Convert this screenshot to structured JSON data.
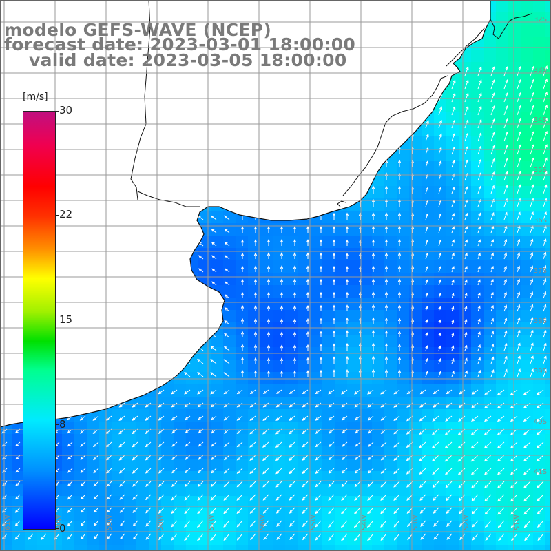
{
  "title": {
    "line1": "modelo GEFS-WAVE (NCEP)",
    "line2": "forecast date: 2023-03-01 18:00:00",
    "line3": "valid date: 2023-03-05 18:00:00"
  },
  "colorbar": {
    "unit": "[m/s]",
    "min": 0,
    "max": 30,
    "tick_labels": [
      "30",
      "22",
      "15",
      "8",
      "0"
    ],
    "tick_values": [
      30,
      22,
      15,
      8,
      0
    ],
    "colors": [
      "#0000ff",
      "#00eaff",
      "#00e000",
      "#ffff00",
      "#ff0000",
      "#c01080"
    ]
  },
  "map": {
    "field": "wind speed and direction",
    "lat_labels": [
      "32S",
      "33S",
      "34S",
      "35S",
      "36S",
      "37S",
      "38S",
      "39S",
      "40S",
      "41S"
    ],
    "lon_labels": [
      "61W",
      "60W",
      "59W",
      "58W",
      "57W",
      "56W",
      "55W",
      "54W",
      "53W",
      "52W",
      "51W"
    ],
    "land_color": "#ffffff",
    "arrow_color": "#ffffff",
    "grid_color": "#9a9a9a"
  }
}
